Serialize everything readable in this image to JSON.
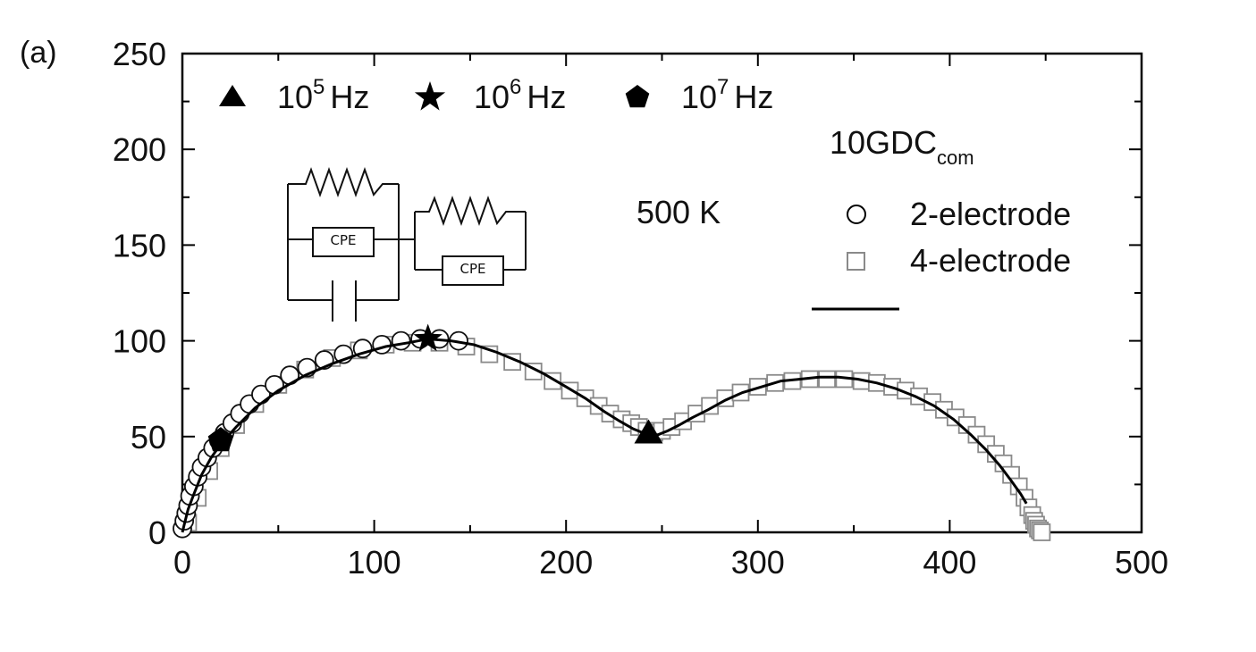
{
  "panel_label": "(a)",
  "chart_data": {
    "type": "scatter",
    "title": "",
    "xlabel": "",
    "ylabel": "",
    "xlim": [
      0,
      500
    ],
    "ylim": [
      0,
      250
    ],
    "xticks": [
      0,
      100,
      200,
      300,
      400,
      500
    ],
    "yticks": [
      0,
      50,
      100,
      150,
      200,
      250
    ],
    "xtick_labels": [
      "0",
      "100",
      "200",
      "300",
      "400",
      "500"
    ],
    "ytick_labels": [
      "0",
      "50",
      "100",
      "150",
      "200",
      "250"
    ],
    "grid": false,
    "annotations": {
      "temperature": "500 K",
      "sample": "10GDC",
      "sample_subscript": "com"
    },
    "frequency_markers": [
      {
        "base": "10",
        "exp": "5",
        "unit": "Hz",
        "shape": "triangle",
        "x": 243,
        "y": 52
      },
      {
        "base": "10",
        "exp": "6",
        "unit": "Hz",
        "shape": "star",
        "x": 128,
        "y": 101
      },
      {
        "base": "10",
        "exp": "7",
        "unit": "Hz",
        "shape": "pentagon",
        "x": 20,
        "y": 48
      }
    ],
    "series": [
      {
        "name": "2-electrode",
        "marker": "open-circle",
        "color": "#111111",
        "points": [
          [
            0,
            2
          ],
          [
            1,
            6
          ],
          [
            2,
            10
          ],
          [
            3,
            14
          ],
          [
            4,
            19
          ],
          [
            6,
            24
          ],
          [
            8,
            29
          ],
          [
            10,
            34
          ],
          [
            13,
            39
          ],
          [
            16,
            44
          ],
          [
            19,
            48
          ],
          [
            22,
            52
          ],
          [
            26,
            57
          ],
          [
            30,
            62
          ],
          [
            35,
            67
          ],
          [
            41,
            72
          ],
          [
            48,
            77
          ],
          [
            56,
            82
          ],
          [
            65,
            86
          ],
          [
            74,
            90
          ],
          [
            84,
            93
          ],
          [
            94,
            96
          ],
          [
            104,
            98
          ],
          [
            114,
            100
          ],
          [
            124,
            101
          ],
          [
            134,
            101
          ],
          [
            144,
            100
          ]
        ]
      },
      {
        "name": "4-electrode",
        "marker": "open-square",
        "color": "#8a8a8a",
        "points": [
          [
            3,
            5
          ],
          [
            8,
            18
          ],
          [
            14,
            32
          ],
          [
            20,
            44
          ],
          [
            28,
            56
          ],
          [
            38,
            67
          ],
          [
            50,
            77
          ],
          [
            64,
            85
          ],
          [
            78,
            91
          ],
          [
            92,
            95
          ],
          [
            106,
            98
          ],
          [
            120,
            99
          ],
          [
            134,
            99
          ],
          [
            148,
            97
          ],
          [
            160,
            93
          ],
          [
            172,
            89
          ],
          [
            183,
            84
          ],
          [
            193,
            79
          ],
          [
            202,
            74
          ],
          [
            210,
            70
          ],
          [
            217,
            66
          ],
          [
            223,
            62
          ],
          [
            229,
            59
          ],
          [
            234,
            57
          ],
          [
            238,
            55
          ],
          [
            242,
            53
          ],
          [
            246,
            52
          ],
          [
            250,
            53
          ],
          [
            255,
            55
          ],
          [
            261,
            58
          ],
          [
            268,
            62
          ],
          [
            275,
            66
          ],
          [
            283,
            70
          ],
          [
            291,
            73
          ],
          [
            300,
            76
          ],
          [
            309,
            78
          ],
          [
            318,
            79
          ],
          [
            327,
            80
          ],
          [
            336,
            80
          ],
          [
            345,
            80
          ],
          [
            354,
            79
          ],
          [
            362,
            78
          ],
          [
            370,
            76
          ],
          [
            377,
            74
          ],
          [
            384,
            71
          ],
          [
            391,
            68
          ],
          [
            397,
            64
          ],
          [
            403,
            60
          ],
          [
            409,
            56
          ],
          [
            414,
            51
          ],
          [
            419,
            46
          ],
          [
            424,
            41
          ],
          [
            428,
            36
          ],
          [
            432,
            30
          ],
          [
            436,
            24
          ],
          [
            439,
            18
          ],
          [
            441,
            13
          ],
          [
            443,
            9
          ],
          [
            444,
            6
          ],
          [
            445,
            4
          ],
          [
            446,
            2
          ],
          [
            447,
            1
          ],
          [
            448,
            0
          ]
        ]
      },
      {
        "name": "",
        "marker": "line",
        "color": "#000000",
        "points": [
          [
            0,
            0
          ],
          [
            1,
            4
          ],
          [
            3,
            12
          ],
          [
            6,
            20
          ],
          [
            10,
            30
          ],
          [
            15,
            39
          ],
          [
            20,
            46
          ],
          [
            28,
            55
          ],
          [
            38,
            65
          ],
          [
            50,
            74
          ],
          [
            64,
            82
          ],
          [
            78,
            88
          ],
          [
            92,
            93
          ],
          [
            106,
            97
          ],
          [
            118,
            99
          ],
          [
            128,
            101
          ],
          [
            140,
            100
          ],
          [
            152,
            98
          ],
          [
            164,
            94
          ],
          [
            176,
            89
          ],
          [
            188,
            83
          ],
          [
            200,
            76
          ],
          [
            210,
            70
          ],
          [
            220,
            63
          ],
          [
            228,
            58
          ],
          [
            235,
            54
          ],
          [
            240,
            52
          ],
          [
            244,
            51
          ],
          [
            248,
            51
          ],
          [
            253,
            53
          ],
          [
            259,
            56
          ],
          [
            266,
            60
          ],
          [
            274,
            64
          ],
          [
            283,
            69
          ],
          [
            292,
            73
          ],
          [
            302,
            76
          ],
          [
            312,
            79
          ],
          [
            322,
            80
          ],
          [
            332,
            81
          ],
          [
            342,
            81
          ],
          [
            352,
            80
          ],
          [
            362,
            78
          ],
          [
            372,
            75
          ],
          [
            382,
            71
          ],
          [
            392,
            66
          ],
          [
            402,
            59
          ],
          [
            411,
            51
          ],
          [
            419,
            43
          ],
          [
            426,
            35
          ],
          [
            432,
            27
          ],
          [
            437,
            20
          ],
          [
            440,
            15
          ]
        ]
      }
    ]
  },
  "inset_circuit": {
    "elements": [
      "resistor",
      "CPE",
      "capacitor",
      "resistor",
      "CPE"
    ],
    "cpe_label": "CPE"
  }
}
